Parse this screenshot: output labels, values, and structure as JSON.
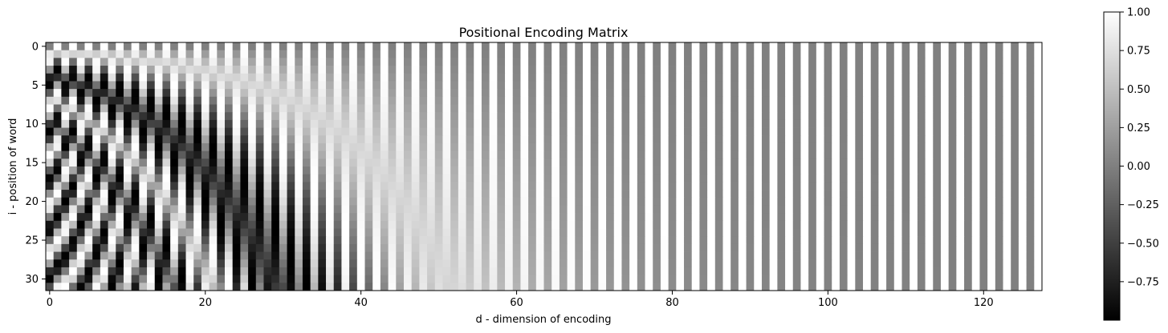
{
  "chart_data": {
    "type": "heatmap",
    "title": "Positional Encoding Matrix",
    "xlabel": "d - dimension of encoding",
    "ylabel": "i - position of word",
    "rows": 32,
    "cols": 128,
    "value_formula": "even d: sin(i / 10000^(d/128)); odd d: cos(i / 10000^((d-1)/128))",
    "colormap": "gray",
    "vmin": -1,
    "vmax": 1,
    "xticks": [
      0,
      20,
      40,
      60,
      80,
      100,
      120
    ],
    "yticks": [
      0,
      5,
      10,
      15,
      20,
      25,
      30
    ],
    "colorbar_ticks": [
      1.0,
      0.75,
      0.5,
      0.25,
      0.0,
      -0.25,
      -0.5,
      -0.75
    ],
    "colorbar_tick_labels": [
      "1.00",
      "0.75",
      "0.50",
      "0.25",
      "0.00",
      "−0.25",
      "−0.50",
      "−0.75"
    ]
  }
}
